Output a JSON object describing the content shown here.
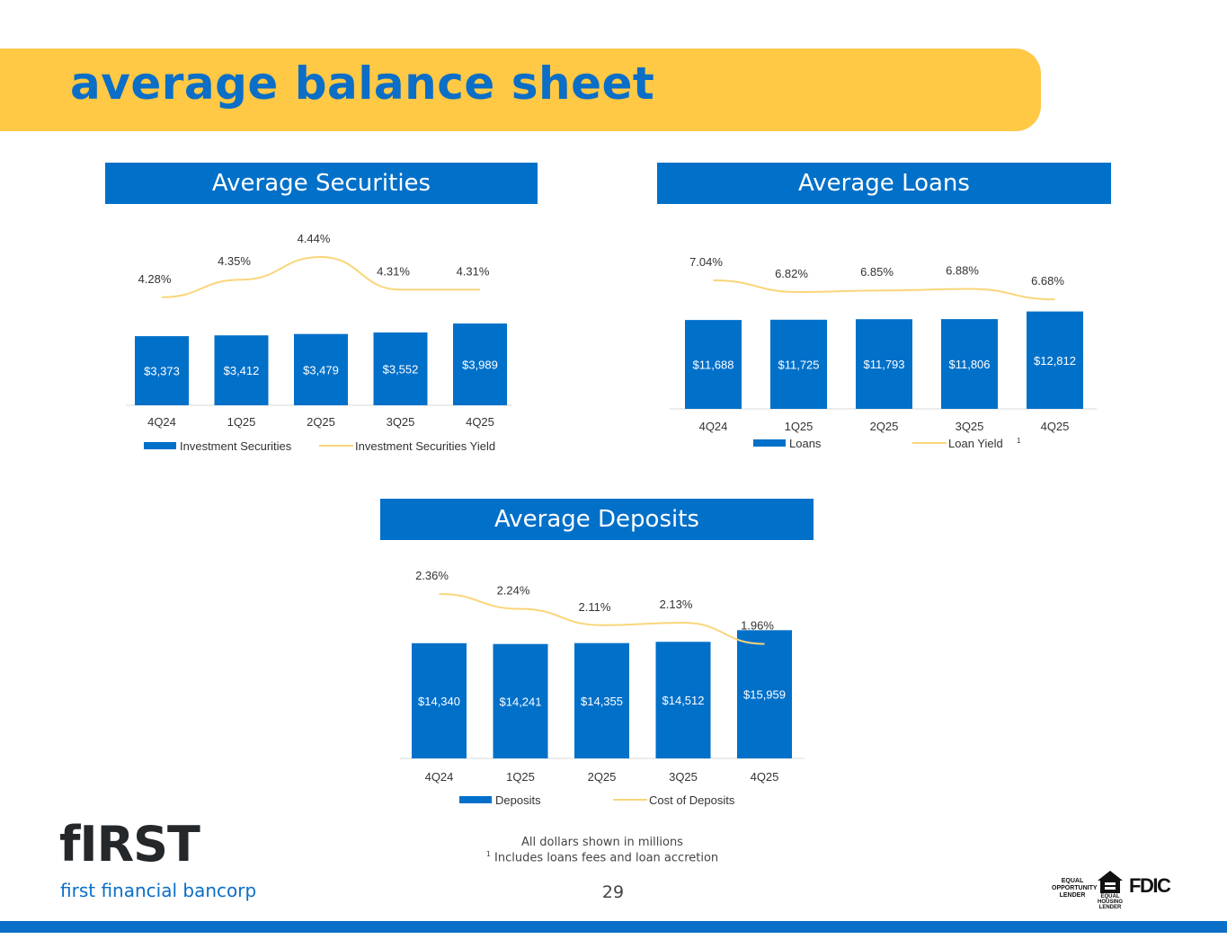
{
  "page": {
    "title": "average balance sheet",
    "page_number": "29",
    "footnote_1": "All dollars shown in millions",
    "footnote_2_marker": "1",
    "footnote_2_text": " Includes loans fees and loan accretion"
  },
  "colors": {
    "accent_yellow": "#FFC845",
    "brand_blue": "#0070C9",
    "bar_blue": "#0070C9",
    "line_yellow": "#F9D67A"
  },
  "logo": {
    "wordmark": "fIRST",
    "tagline": "first financial bancorp"
  },
  "badges": {
    "equal_opportunity": "EQUAL OPPORTUNITY LENDER",
    "equal_housing": "EQUAL HOUSING LENDER",
    "fdic": "FDIC"
  },
  "chart_data": [
    {
      "id": "securities",
      "type": "bar",
      "title": "Average Securities",
      "categories": [
        "4Q24",
        "1Q25",
        "2Q25",
        "3Q25",
        "4Q25"
      ],
      "series": [
        {
          "name": "Investment Securities",
          "kind": "bar",
          "values": [
            3373,
            3412,
            3479,
            3552,
            3989
          ],
          "labels": [
            "$3,373",
            "$3,412",
            "$3,479",
            "$3,552",
            "$3,989"
          ]
        },
        {
          "name": "Investment Securities Yield",
          "kind": "line",
          "values": [
            4.28,
            4.35,
            4.44,
            4.31,
            4.31
          ],
          "labels": [
            "4.28%",
            "4.35%",
            "4.44%",
            "4.31%",
            "4.31%"
          ]
        }
      ],
      "legend": {
        "bar_label": "Investment Securities",
        "line_label": "Investment Securities Yield",
        "line_marker": ""
      }
    },
    {
      "id": "loans",
      "type": "bar",
      "title": "Average Loans",
      "categories": [
        "4Q24",
        "1Q25",
        "2Q25",
        "3Q25",
        "4Q25"
      ],
      "series": [
        {
          "name": "Loans",
          "kind": "bar",
          "values": [
            11688,
            11725,
            11793,
            11806,
            12812
          ],
          "labels": [
            "$11,688",
            "$11,725",
            "$11,793",
            "$11,806",
            "$12,812"
          ]
        },
        {
          "name": "Loan Yield",
          "kind": "line",
          "values": [
            7.04,
            6.82,
            6.85,
            6.88,
            6.68
          ],
          "labels": [
            "7.04%",
            "6.82%",
            "6.85%",
            "6.88%",
            "6.68%"
          ]
        }
      ],
      "legend": {
        "bar_label": "Loans",
        "line_label": "Loan Yield",
        "line_marker": "1"
      }
    },
    {
      "id": "deposits",
      "type": "bar",
      "title": "Average Deposits",
      "categories": [
        "4Q24",
        "1Q25",
        "2Q25",
        "3Q25",
        "4Q25"
      ],
      "series": [
        {
          "name": "Deposits",
          "kind": "bar",
          "values": [
            14340,
            14241,
            14355,
            14512,
            15959
          ],
          "labels": [
            "$14,340",
            "$14,241",
            "$14,355",
            "$14,512",
            "$15,959"
          ]
        },
        {
          "name": "Cost of Deposits",
          "kind": "line",
          "values": [
            2.36,
            2.24,
            2.11,
            2.13,
            1.96
          ],
          "labels": [
            "2.36%",
            "2.24%",
            "2.11%",
            "2.13%",
            "1.96%"
          ]
        }
      ],
      "legend": {
        "bar_label": "Deposits",
        "line_label": "Cost of Deposits",
        "line_marker": ""
      }
    }
  ]
}
